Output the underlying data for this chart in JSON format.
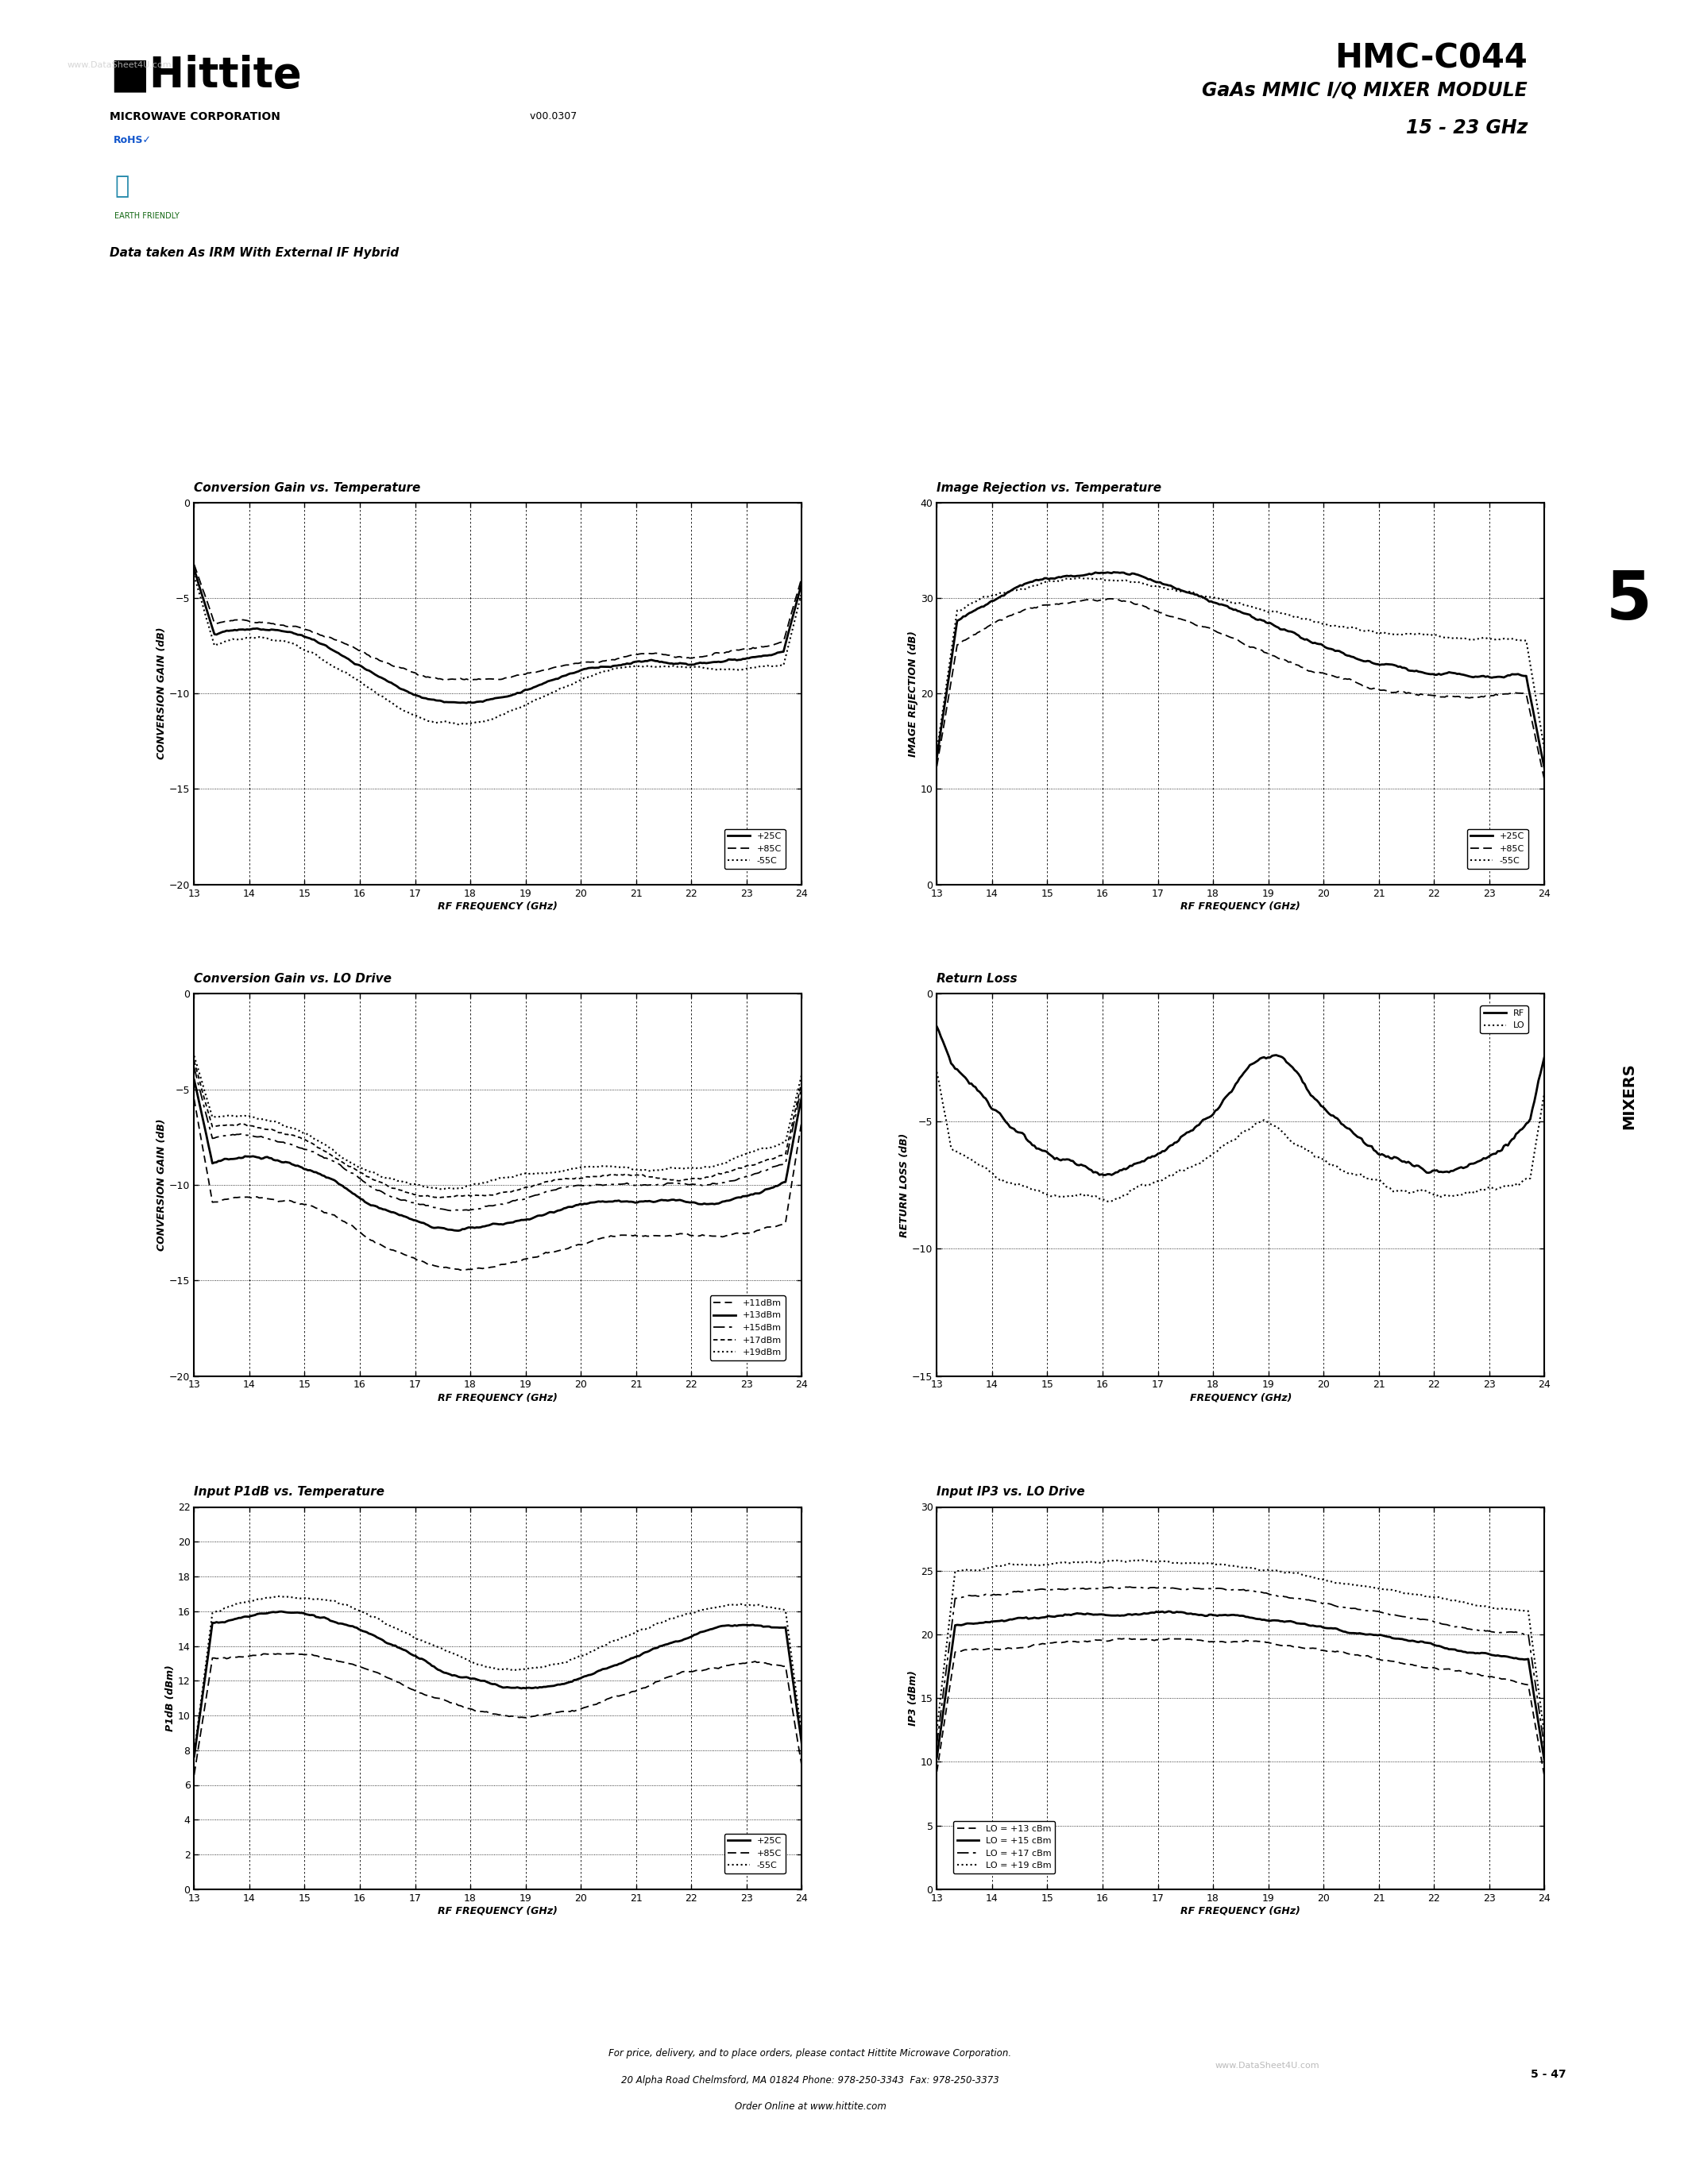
{
  "page_title": "HMC-C044",
  "page_subtitle": "GaAs MMIC I/Q MIXER MODULE",
  "page_subtitle2": "15 - 23 GHz",
  "company": "MICROWAVE CORPORATION",
  "version": "v00.0307",
  "data_note": "Data taken As IRM With External IF Hybrid",
  "section_num": "5",
  "section_name": "MIXERS",
  "page_num": "5 - 47",
  "footer1": "For price, delivery, and to place orders, please contact Hittite Microwave Corporation.",
  "footer2": "20 Alpha Road Chelmsford, MA 01824 Phone: 978-250-3343  Fax: 978-250-3373",
  "footer3": "Order Online at www.hittite.com",
  "watermark": "www.DataSheet4U.com",
  "plots": [
    {
      "title": "Conversion Gain vs. Temperature",
      "xlabel": "RF FREQUENCY (GHz)",
      "ylabel": "CONVERSION GAIN (dB)",
      "xlim": [
        13,
        24
      ],
      "ylim": [
        -20,
        0
      ],
      "xticks": [
        13,
        14,
        15,
        16,
        17,
        18,
        19,
        20,
        21,
        22,
        23,
        24
      ],
      "yticks": [
        0,
        -5,
        -10,
        -15,
        -20
      ],
      "legend": [
        "+25C",
        "+85C",
        "-55C"
      ],
      "legend_loc": "lower right"
    },
    {
      "title": "Image Rejection vs. Temperature",
      "xlabel": "RF FREQUENCY (GHz)",
      "ylabel": "IMAGE REJECTION (dB)",
      "xlim": [
        13,
        24
      ],
      "ylim": [
        0,
        40
      ],
      "xticks": [
        13,
        14,
        15,
        16,
        17,
        18,
        19,
        20,
        21,
        22,
        23,
        24
      ],
      "yticks": [
        0,
        10,
        20,
        30,
        40
      ],
      "legend": [
        "+25C",
        "+85C",
        "-55C"
      ],
      "legend_loc": "lower right"
    },
    {
      "title": "Conversion Gain vs. LO Drive",
      "xlabel": "RF FREQUENCY (GHz)",
      "ylabel": "CONVERSION GAIN (dB)",
      "xlim": [
        13,
        24
      ],
      "ylim": [
        -20,
        0
      ],
      "xticks": [
        13,
        14,
        15,
        16,
        17,
        18,
        19,
        20,
        21,
        22,
        23,
        24
      ],
      "yticks": [
        0,
        -5,
        -10,
        -15,
        -20
      ],
      "legend": [
        "+11dBm",
        "+13dBm",
        "+15dBm",
        "+17dBm",
        "+19dBm"
      ],
      "legend_loc": "lower right"
    },
    {
      "title": "Return Loss",
      "xlabel": "FREQUENCY (GHz)",
      "ylabel": "RETURN LOSS (dB)",
      "xlim": [
        13,
        24
      ],
      "ylim": [
        -15,
        0
      ],
      "xticks": [
        13,
        14,
        15,
        16,
        17,
        18,
        19,
        20,
        21,
        22,
        23,
        24
      ],
      "yticks": [
        0,
        -5,
        -10,
        -15
      ],
      "legend": [
        "RF",
        "LO"
      ],
      "legend_loc": "upper right"
    },
    {
      "title": "Input P1dB vs. Temperature",
      "xlabel": "RF FREQUENCY (GHz)",
      "ylabel": "P1dB (dBm)",
      "xlim": [
        13,
        24
      ],
      "ylim": [
        0,
        22
      ],
      "xticks": [
        13,
        14,
        15,
        16,
        17,
        18,
        19,
        20,
        21,
        22,
        23,
        24
      ],
      "yticks": [
        0,
        2,
        4,
        6,
        8,
        10,
        12,
        14,
        16,
        18,
        20,
        22
      ],
      "legend": [
        "+25C",
        "+85C",
        "-55C"
      ],
      "legend_loc": "lower right"
    },
    {
      "title": "Input IP3 vs. LO Drive",
      "xlabel": "RF FREQUENCY (GHz)",
      "ylabel": "IP3 (dBm)",
      "xlim": [
        13,
        24
      ],
      "ylim": [
        0,
        30
      ],
      "xticks": [
        13,
        14,
        15,
        16,
        17,
        18,
        19,
        20,
        21,
        22,
        23,
        24
      ],
      "yticks": [
        0,
        5,
        10,
        15,
        20,
        25,
        30
      ],
      "legend": [
        "LO = +13 cBm",
        "LO = +15 cBm",
        "LO = +17 cBm",
        "LO = +19 cBm"
      ],
      "legend_loc": "lower left"
    }
  ]
}
